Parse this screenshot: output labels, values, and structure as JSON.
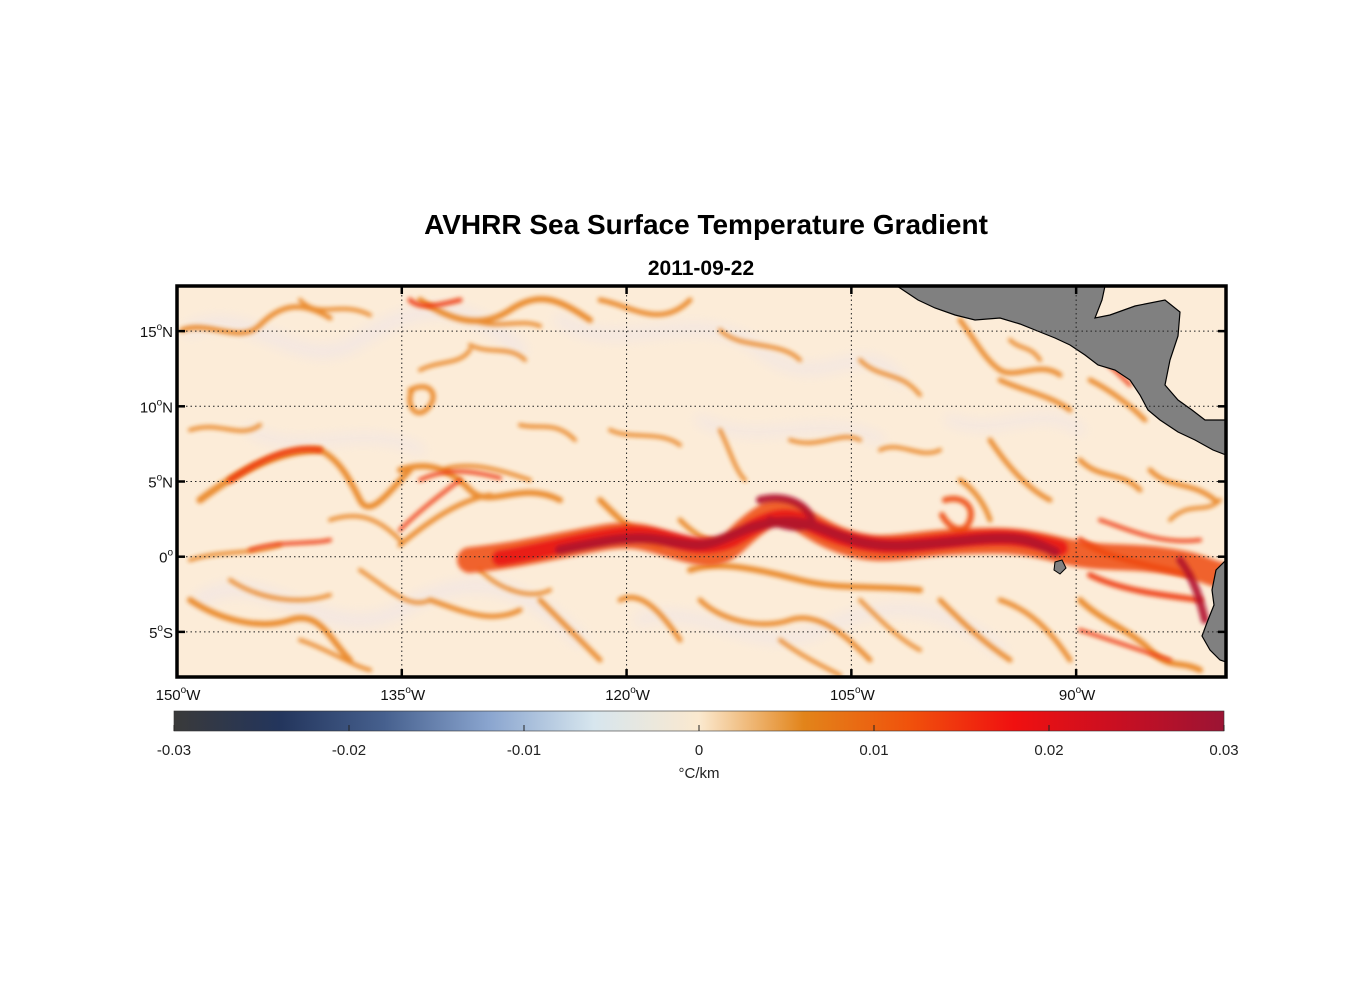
{
  "chart_data": {
    "type": "heatmap",
    "title": "AVHRR Sea Surface Temperature Gradient",
    "subtitle": "2011-09-22",
    "lon_range": [
      -150,
      -80
    ],
    "lat_range": [
      -8,
      18
    ],
    "x_ticks": [
      {
        "value": -150,
        "num": "150",
        "hemi": "W"
      },
      {
        "value": -135,
        "num": "135",
        "hemi": "W"
      },
      {
        "value": -120,
        "num": "120",
        "hemi": "W"
      },
      {
        "value": -105,
        "num": "105",
        "hemi": "W"
      },
      {
        "value": -90,
        "num": "90",
        "hemi": "W"
      }
    ],
    "y_ticks": [
      {
        "value": 15,
        "num": "15",
        "hemi": "N"
      },
      {
        "value": 10,
        "num": "10",
        "hemi": "N"
      },
      {
        "value": 5,
        "num": "5",
        "hemi": "N"
      },
      {
        "value": 0,
        "num": "0",
        "hemi": ""
      },
      {
        "value": -5,
        "num": "5",
        "hemi": "S"
      }
    ],
    "grid": true,
    "colorbar": {
      "range": [
        -0.03,
        0.03
      ],
      "ticks": [
        "-0.03",
        "-0.02",
        "-0.01",
        "0",
        "0.01",
        "0.02",
        "0.03"
      ],
      "label": "°C/km",
      "placement": "bottom",
      "colors": [
        "#3a3a3a",
        "#23355c",
        "#46608e",
        "#8aa5cf",
        "#d7e6ee",
        "#fbe9cf",
        "#e2841a",
        "#f0520c",
        "#f01010",
        "#c80f22",
        "#9b1434"
      ]
    },
    "features": {
      "equatorial_front_peak_degC_per_km": 0.03,
      "background_degC_per_km": 0.003,
      "land_color": "#808080",
      "ocean_background_color": "#fcecd8"
    }
  }
}
